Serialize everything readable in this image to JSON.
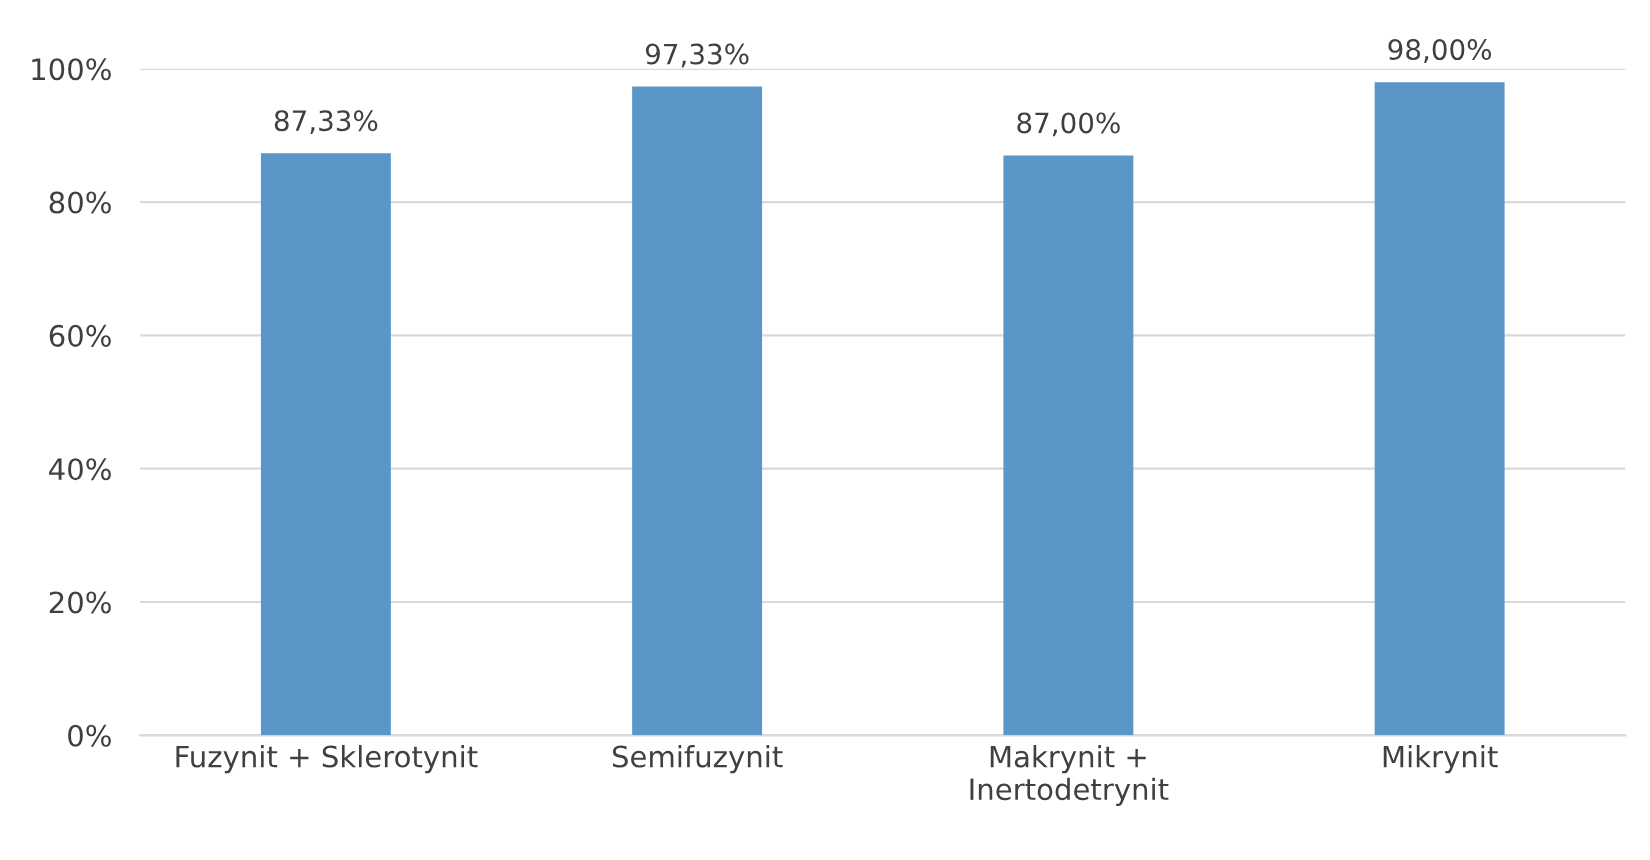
{
  "chart_data": {
    "type": "bar",
    "categories": [
      "Fuzynit + Sklerotynit",
      "Semifuzynit",
      "Makrynit +\nInertodetrynit",
      "Mikrynit"
    ],
    "values": [
      87.33,
      97.33,
      87.0,
      98.0
    ],
    "value_labels": [
      "87,33%",
      "97,33%",
      "87,00%",
      "98,00%"
    ],
    "color": "#5b96c9",
    "ylim": [
      0,
      100
    ],
    "yticks": [
      {
        "value": 0,
        "label": "0%"
      },
      {
        "value": 20,
        "label": "20%"
      },
      {
        "value": 40,
        "label": "40%"
      },
      {
        "value": 60,
        "label": "60%"
      },
      {
        "value": 80,
        "label": "80%"
      },
      {
        "value": 100,
        "label": "100%"
      }
    ],
    "grid": "y",
    "legend": false
  }
}
